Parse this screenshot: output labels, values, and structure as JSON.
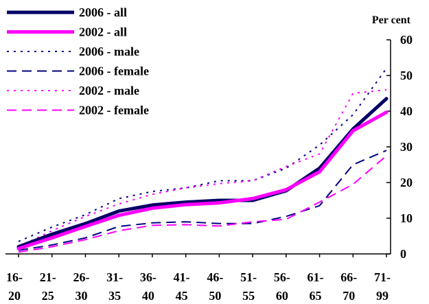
{
  "chart_data": {
    "type": "line",
    "title": "",
    "xlabel": "",
    "ylabel": "Per cent",
    "ylim": [
      0,
      60
    ],
    "y_ticks": [
      0,
      10,
      20,
      30,
      40,
      50,
      60
    ],
    "y_axis_side": "right",
    "grid": false,
    "legend_position": "top-left",
    "categories": [
      {
        "top": "16-",
        "bottom": "20"
      },
      {
        "top": "21-",
        "bottom": "25"
      },
      {
        "top": "26-",
        "bottom": "30"
      },
      {
        "top": "31-",
        "bottom": "35"
      },
      {
        "top": "36-",
        "bottom": "40"
      },
      {
        "top": "41-",
        "bottom": "45"
      },
      {
        "top": "46-",
        "bottom": "50"
      },
      {
        "top": "51-",
        "bottom": "55"
      },
      {
        "top": "56-",
        "bottom": "60"
      },
      {
        "top": "61-",
        "bottom": "65"
      },
      {
        "top": "66-",
        "bottom": "70"
      },
      {
        "top": "71-",
        "bottom": "99"
      }
    ],
    "series": [
      {
        "name": "2006 - all",
        "color": "#000066",
        "style": "solid",
        "width": 5,
        "values": [
          2,
          5.5,
          8.5,
          12,
          13.7,
          14.5,
          15,
          15,
          17.7,
          24,
          35,
          43.5
        ]
      },
      {
        "name": "2002 - all",
        "color": "#ff00ff",
        "style": "solid",
        "width": 5,
        "values": [
          1.5,
          4.5,
          7.7,
          10.8,
          12.8,
          13.8,
          14.3,
          15.5,
          18,
          23,
          34.5,
          39.7
        ]
      },
      {
        "name": "2006 - male",
        "color": "#000080",
        "style": "dotted",
        "width": 2,
        "values": [
          3.5,
          7.5,
          11,
          15.5,
          17.5,
          18.5,
          20.5,
          20.5,
          24,
          30.5,
          39,
          52
        ]
      },
      {
        "name": "2006 - female",
        "color": "#000080",
        "style": "dashed",
        "width": 2,
        "values": [
          1,
          2.5,
          4.5,
          7.7,
          8.7,
          9,
          8.5,
          8.5,
          10.5,
          13.5,
          25,
          29
        ]
      },
      {
        "name": "2002 - male",
        "color": "#ff00ff",
        "style": "dotted",
        "width": 2,
        "values": [
          2,
          6.5,
          10.5,
          14,
          16.7,
          18.5,
          19.7,
          20.5,
          24.5,
          28,
          45,
          46
        ]
      },
      {
        "name": "2002 - female",
        "color": "#ff00ff",
        "style": "dashed",
        "width": 2,
        "values": [
          0.5,
          2,
          4,
          6.5,
          8,
          8.2,
          7.8,
          9,
          9.7,
          14.5,
          19.5,
          27.5
        ]
      }
    ]
  }
}
